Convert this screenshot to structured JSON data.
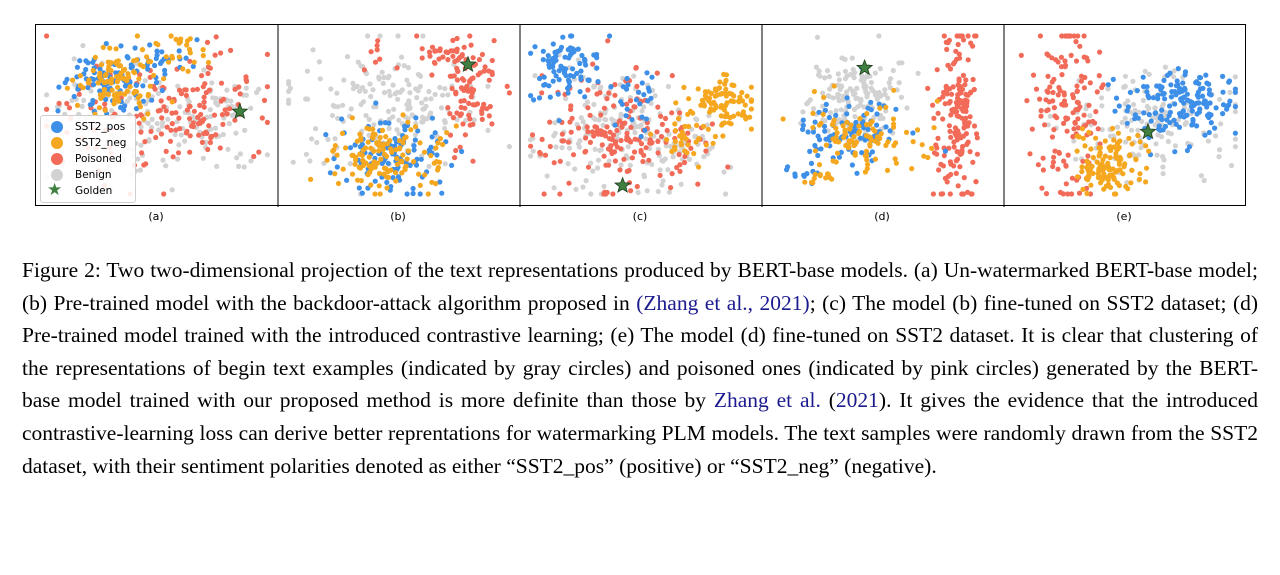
{
  "colors": {
    "sst2_pos": "#3d8fe8",
    "sst2_neg": "#f5a81f",
    "poisoned": "#f26b58",
    "benign": "#d2d2d2",
    "golden": "#3f7f3f",
    "citation": "#1b1b8f"
  },
  "chart_data": [
    {
      "panel": "(a)",
      "type": "scatter",
      "x_ticks": [],
      "y_ticks": [],
      "golden_star": true,
      "series": [
        {
          "name": "Benign",
          "clusters": [
            {
              "cx": 0.42,
              "cy": 0.52,
              "sx": 0.22,
              "sy": 0.18,
              "n": 160
            },
            {
              "cx": 0.78,
              "cy": 0.47,
              "sx": 0.09,
              "sy": 0.16,
              "n": 40
            }
          ]
        },
        {
          "name": "Poisoned",
          "clusters": [
            {
              "cx": 0.68,
              "cy": 0.45,
              "sx": 0.15,
              "sy": 0.15,
              "n": 110
            },
            {
              "cx": 0.33,
              "cy": 0.58,
              "sx": 0.2,
              "sy": 0.2,
              "n": 50
            }
          ]
        },
        {
          "name": "SST2_pos",
          "clusters": [
            {
              "cx": 0.3,
              "cy": 0.3,
              "sx": 0.11,
              "sy": 0.11,
              "n": 90
            },
            {
              "cx": 0.54,
              "cy": 0.15,
              "sx": 0.09,
              "sy": 0.05,
              "n": 25
            }
          ]
        },
        {
          "name": "SST2_neg",
          "clusters": [
            {
              "cx": 0.33,
              "cy": 0.28,
              "sx": 0.1,
              "sy": 0.11,
              "n": 100
            },
            {
              "cx": 0.58,
              "cy": 0.12,
              "sx": 0.09,
              "sy": 0.05,
              "n": 25
            }
          ]
        }
      ]
    },
    {
      "panel": "(b)",
      "type": "scatter",
      "x_ticks": [],
      "y_ticks": [],
      "golden_star": true,
      "series": [
        {
          "name": "Benign",
          "clusters": [
            {
              "cx": 0.45,
              "cy": 0.45,
              "sx": 0.2,
              "sy": 0.18,
              "n": 180
            }
          ]
        },
        {
          "name": "Poisoned",
          "clusters": [
            {
              "cx": 0.82,
              "cy": 0.35,
              "sx": 0.06,
              "sy": 0.16,
              "n": 90
            },
            {
              "cx": 0.72,
              "cy": 0.14,
              "sx": 0.07,
              "sy": 0.06,
              "n": 25
            },
            {
              "cx": 0.38,
              "cy": 0.17,
              "sx": 0.04,
              "sy": 0.05,
              "n": 8
            }
          ]
        },
        {
          "name": "SST2_pos",
          "clusters": [
            {
              "cx": 0.45,
              "cy": 0.72,
              "sx": 0.12,
              "sy": 0.11,
              "n": 110
            }
          ]
        },
        {
          "name": "SST2_neg",
          "clusters": [
            {
              "cx": 0.45,
              "cy": 0.74,
              "sx": 0.13,
              "sy": 0.11,
              "n": 130
            }
          ]
        }
      ]
    },
    {
      "panel": "(c)",
      "type": "scatter",
      "x_ticks": [],
      "y_ticks": [],
      "golden_star": true,
      "series": [
        {
          "name": "Benign",
          "clusters": [
            {
              "cx": 0.35,
              "cy": 0.55,
              "sx": 0.15,
              "sy": 0.2,
              "n": 130
            },
            {
              "cx": 0.62,
              "cy": 0.65,
              "sx": 0.12,
              "sy": 0.14,
              "n": 60
            }
          ]
        },
        {
          "name": "Poisoned",
          "clusters": [
            {
              "cx": 0.33,
              "cy": 0.55,
              "sx": 0.15,
              "sy": 0.2,
              "n": 130
            },
            {
              "cx": 0.58,
              "cy": 0.68,
              "sx": 0.12,
              "sy": 0.12,
              "n": 60
            }
          ]
        },
        {
          "name": "SST2_pos",
          "clusters": [
            {
              "cx": 0.18,
              "cy": 0.22,
              "sx": 0.08,
              "sy": 0.12,
              "n": 90
            },
            {
              "cx": 0.46,
              "cy": 0.4,
              "sx": 0.05,
              "sy": 0.08,
              "n": 25
            }
          ]
        },
        {
          "name": "SST2_neg",
          "clusters": [
            {
              "cx": 0.85,
              "cy": 0.45,
              "sx": 0.08,
              "sy": 0.08,
              "n": 90
            },
            {
              "cx": 0.7,
              "cy": 0.62,
              "sx": 0.06,
              "sy": 0.08,
              "n": 30
            }
          ]
        }
      ]
    },
    {
      "panel": "(d)",
      "type": "scatter",
      "x_ticks": [],
      "y_ticks": [],
      "golden_star": true,
      "series": [
        {
          "name": "Benign",
          "clusters": [
            {
              "cx": 0.38,
              "cy": 0.38,
              "sx": 0.1,
              "sy": 0.12,
              "n": 150
            }
          ]
        },
        {
          "name": "Poisoned",
          "clusters": [
            {
              "cx": 0.82,
              "cy": 0.5,
              "sx": 0.05,
              "sy": 0.3,
              "n": 170
            }
          ]
        },
        {
          "name": "SST2_pos",
          "clusters": [
            {
              "cx": 0.38,
              "cy": 0.6,
              "sx": 0.12,
              "sy": 0.1,
              "n": 90
            },
            {
              "cx": 0.16,
              "cy": 0.85,
              "sx": 0.05,
              "sy": 0.03,
              "n": 12
            }
          ]
        },
        {
          "name": "SST2_neg",
          "clusters": [
            {
              "cx": 0.4,
              "cy": 0.62,
              "sx": 0.12,
              "sy": 0.1,
              "n": 100
            },
            {
              "cx": 0.22,
              "cy": 0.87,
              "sx": 0.05,
              "sy": 0.03,
              "n": 12
            }
          ]
        }
      ]
    },
    {
      "panel": "(e)",
      "type": "scatter",
      "x_ticks": [],
      "y_ticks": [],
      "golden_star": true,
      "series": [
        {
          "name": "Benign",
          "clusters": [
            {
              "cx": 0.6,
              "cy": 0.56,
              "sx": 0.18,
              "sy": 0.15,
              "n": 140
            }
          ]
        },
        {
          "name": "Poisoned",
          "clusters": [
            {
              "cx": 0.25,
              "cy": 0.45,
              "sx": 0.08,
              "sy": 0.25,
              "n": 140
            }
          ]
        },
        {
          "name": "SST2_pos",
          "clusters": [
            {
              "cx": 0.76,
              "cy": 0.44,
              "sx": 0.12,
              "sy": 0.1,
              "n": 160
            }
          ]
        },
        {
          "name": "SST2_neg",
          "clusters": [
            {
              "cx": 0.42,
              "cy": 0.8,
              "sx": 0.07,
              "sy": 0.09,
              "n": 130
            }
          ]
        }
      ]
    }
  ],
  "legend": {
    "items": [
      {
        "label": "SST2_pos"
      },
      {
        "label": "SST2_neg"
      },
      {
        "label": "Poisoned"
      },
      {
        "label": "Benign"
      },
      {
        "label": "Golden"
      }
    ]
  },
  "panel_labels": [
    "(a)",
    "(b)",
    "(c)",
    "(d)",
    "(e)"
  ],
  "caption": {
    "text1": "Figure 2: Two two-dimensional projection of the text representations produced by BERT-base models. (a) Un-watermarked BERT-base model; (b) Pre-trained model with the backdoor-attack algorithm proposed in ",
    "cite1": "(Zhang et al., 2021)",
    "text2": "; (c) The model (b) fine-tuned on SST2 dataset; (d) Pre-trained model trained with the introduced contrastive learning; (e) The model (d) fine-tuned on SST2 dataset. It is clear that clustering of the representations of begin text examples (indicated by gray circles) and poisoned ones (indicated by pink circles) generated by the BERT-base model trained with our proposed method is more definite than those by ",
    "cite2_authors": "Zhang et al.",
    "text3": " (",
    "cite2_year": "2021",
    "text4": "). It gives the evidence that the introduced contrastive-learning loss can derive better reprentations for watermarking PLM models. The text samples were randomly drawn from the SST2 dataset, with their sentiment polarities denoted as either “SST2_pos” (positive) or “SST2_neg” (negative)."
  }
}
